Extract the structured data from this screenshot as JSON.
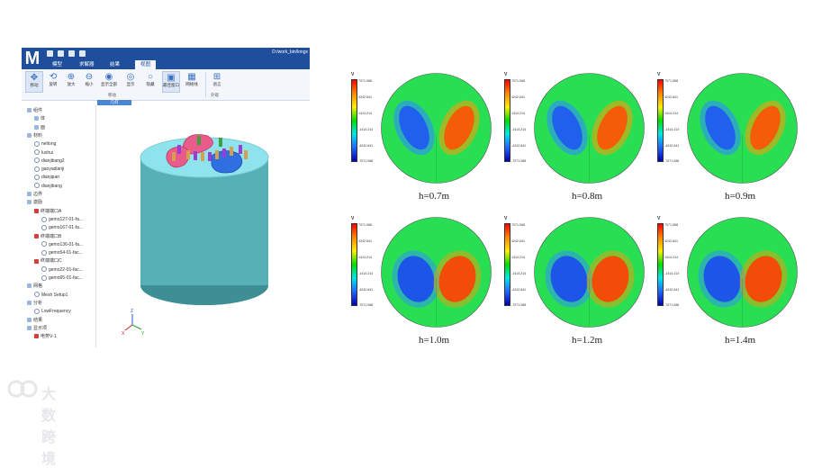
{
  "app": {
    "logo": "M",
    "path": "D:/work_bin/longx",
    "tabs": [
      {
        "label": "模型"
      },
      {
        "label": "求解器"
      },
      {
        "label": "结果"
      },
      {
        "label": "视图"
      }
    ],
    "ribbon": {
      "buttons": [
        {
          "label": "移动",
          "icon": "move-icon"
        },
        {
          "label": "旋转",
          "icon": "rotate-icon"
        },
        {
          "label": "放大",
          "icon": "zoom-in-icon"
        },
        {
          "label": "缩小",
          "icon": "zoom-out-icon"
        },
        {
          "label": "显示全部",
          "icon": "show-all-icon"
        },
        {
          "label": "显示",
          "icon": "show-icon"
        },
        {
          "label": "隐藏",
          "icon": "hide-icon"
        },
        {
          "label": "最佳窗口",
          "icon": "best-window-icon"
        },
        {
          "label": "网格线",
          "icon": "grid-icon"
        },
        {
          "label": "语言",
          "icon": "language-icon"
        }
      ],
      "groups": [
        {
          "label": "移动"
        },
        {
          "label": "外观"
        }
      ],
      "sub_label": "几何"
    },
    "tree": [
      {
        "label": "组件",
        "indent": 0,
        "icon": "folder"
      },
      {
        "label": "体",
        "indent": 1,
        "icon": "body"
      },
      {
        "label": "面",
        "indent": 1,
        "icon": "face"
      },
      {
        "label": "材料",
        "indent": 0,
        "icon": "folder"
      },
      {
        "label": "neltong",
        "indent": 1,
        "icon": "ring"
      },
      {
        "label": "lushui",
        "indent": 1,
        "icon": "ring"
      },
      {
        "label": "dianjibang2",
        "indent": 1,
        "icon": "ring"
      },
      {
        "label": "gaoyadianji",
        "indent": 1,
        "icon": "ring"
      },
      {
        "label": "dianjipan",
        "indent": 1,
        "icon": "ring"
      },
      {
        "label": "dianjibang",
        "indent": 1,
        "icon": "ring"
      },
      {
        "label": "边界",
        "indent": 0,
        "icon": "folder"
      },
      {
        "label": "激励",
        "indent": 0,
        "icon": "folder"
      },
      {
        "label": "终端端口A",
        "indent": 1,
        "icon": "red"
      },
      {
        "label": "gemo127-01-fa...",
        "indent": 2,
        "icon": "ring"
      },
      {
        "label": "gemo167-01-fa...",
        "indent": 2,
        "icon": "ring"
      },
      {
        "label": "终端端口B",
        "indent": 1,
        "icon": "red"
      },
      {
        "label": "gemo136-01-fa...",
        "indent": 2,
        "icon": "ring"
      },
      {
        "label": "gemo54-01-fac...",
        "indent": 2,
        "icon": "ring"
      },
      {
        "label": "终端端口C",
        "indent": 1,
        "icon": "red"
      },
      {
        "label": "gemo22-01-fac...",
        "indent": 2,
        "icon": "ring"
      },
      {
        "label": "gemo65-01-fac...",
        "indent": 2,
        "icon": "ring"
      },
      {
        "label": "网格",
        "indent": 0,
        "icon": "folder"
      },
      {
        "label": "Mesh Setup1",
        "indent": 1,
        "icon": "ring"
      },
      {
        "label": "分析",
        "indent": 0,
        "icon": "folder"
      },
      {
        "label": "LowFrequency",
        "indent": 1,
        "icon": "ring"
      },
      {
        "label": "结果",
        "indent": 0,
        "icon": "folder"
      },
      {
        "label": "显示项",
        "indent": 0,
        "icon": "folder"
      },
      {
        "label": "电势V-1",
        "indent": 1,
        "icon": "red"
      }
    ],
    "axes": {
      "x": "X",
      "y": "Y",
      "z": "Z"
    }
  },
  "plots": {
    "colorbar_title": "V",
    "ticks_a": [
      "7071.068",
      "4242.641",
      "1414.214",
      "-1414.214",
      "-4242.641",
      "-7071.068"
    ],
    "ticks_b": [
      "7071.068",
      "4242.641",
      "1414.214",
      "-1414.214",
      "-4242.641",
      "-7071.068"
    ],
    "panels": [
      {
        "label": "h=0.7m"
      },
      {
        "label": "h=0.8m"
      },
      {
        "label": "h=0.9m"
      },
      {
        "label": "h=1.0m"
      },
      {
        "label": "h=1.2m"
      },
      {
        "label": "h=1.4m"
      }
    ]
  },
  "watermark": "大数跨境",
  "colors": {
    "brand": "#1f4e9c",
    "accent": "#4a86d8"
  }
}
